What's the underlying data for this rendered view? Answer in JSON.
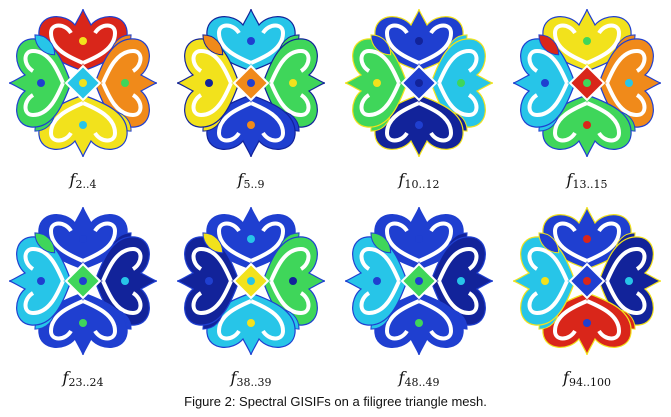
{
  "caption": "Figure 2: Spectral GISIFs on a filigree triangle mesh.",
  "panels": [
    {
      "label_f": "f",
      "label_sub": "2..4",
      "scheme": "warm"
    },
    {
      "label_f": "f",
      "label_sub": "5..9",
      "scheme": "mixed"
    },
    {
      "label_f": "f",
      "label_sub": "10..12",
      "scheme": "cool"
    },
    {
      "label_f": "f",
      "label_sub": "13..15",
      "scheme": "mixed-warm"
    },
    {
      "label_f": "f",
      "label_sub": "23..24",
      "scheme": "blue"
    },
    {
      "label_f": "f",
      "label_sub": "38..39",
      "scheme": "blue-green"
    },
    {
      "label_f": "f",
      "label_sub": "48..49",
      "scheme": "blue"
    },
    {
      "label_f": "f",
      "label_sub": "94..100",
      "scheme": "blue-edges"
    }
  ],
  "colors": {
    "blue": "#1f3fd0",
    "dark_blue": "#12239a",
    "cyan": "#27c5e8",
    "green": "#3fd65a",
    "yellow": "#f2e21c",
    "orange": "#f08a1a",
    "red": "#d9261a"
  }
}
